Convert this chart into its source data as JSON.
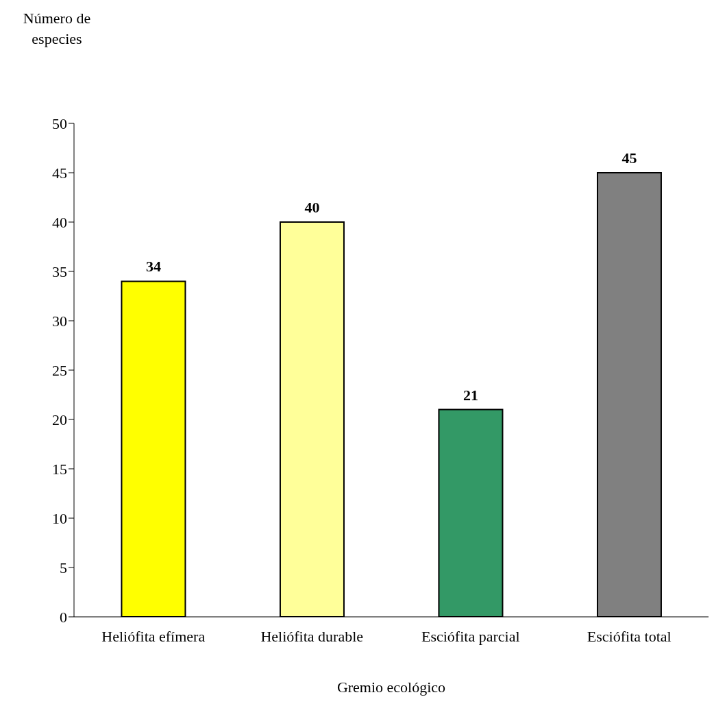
{
  "chart_data": {
    "type": "bar",
    "xlabel": "Gremio ecológico",
    "ylabel": "Número de especies",
    "categories": [
      "Heliófita efímera",
      "Heliófita durable",
      "Esciófita parcial",
      "Esciófita total"
    ],
    "values": [
      34,
      40,
      21,
      45
    ],
    "colors": [
      "#ffff00",
      "#ffff99",
      "#339966",
      "#808080"
    ],
    "ylim": [
      0,
      50
    ],
    "yticks": [
      0,
      5,
      10,
      15,
      20,
      25,
      30,
      35,
      40,
      45,
      50
    ],
    "grid": false,
    "data_labels": true
  }
}
